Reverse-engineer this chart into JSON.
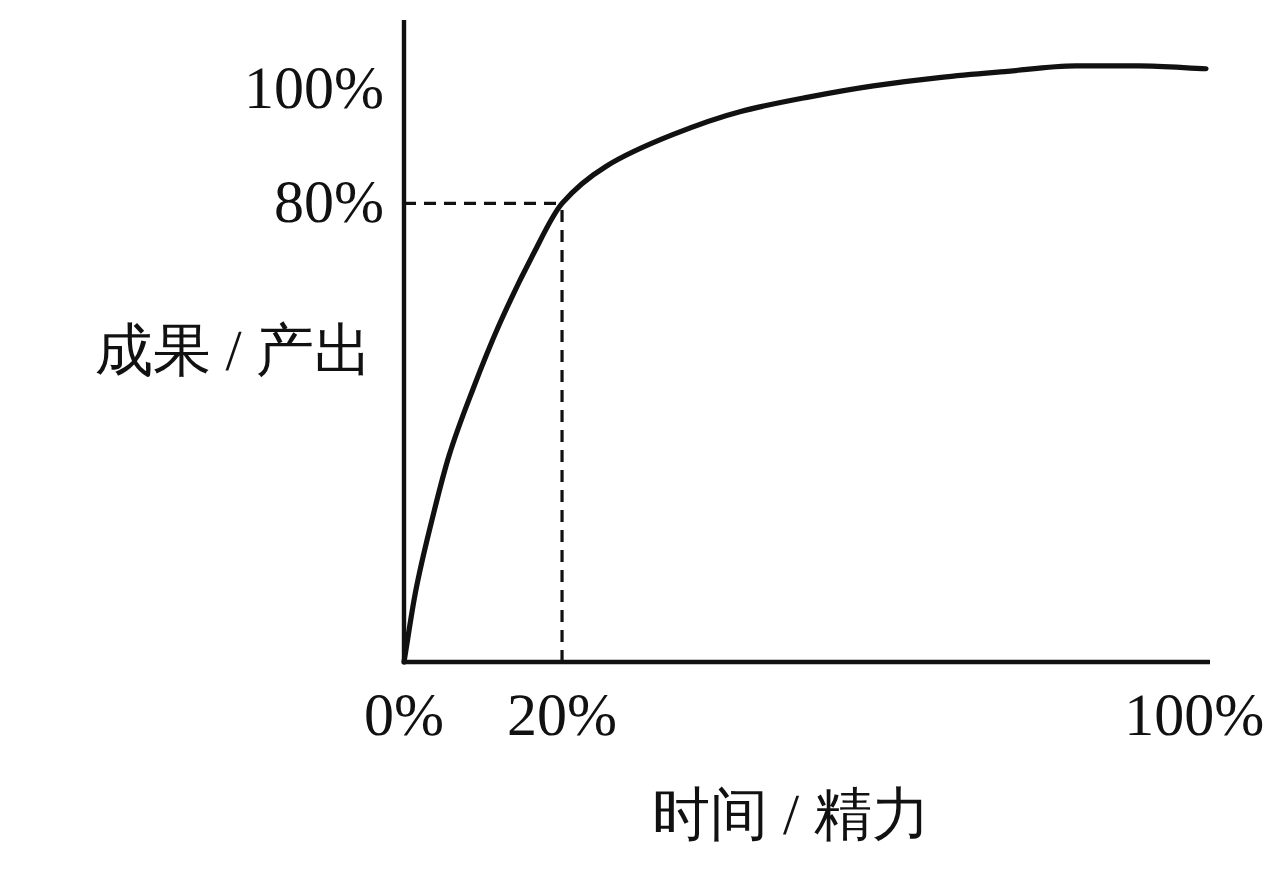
{
  "chart_data": {
    "type": "line",
    "xlabel": "时间 / 精力",
    "ylabel": "成果 / 产出",
    "x": [
      0,
      1.5,
      3.4,
      5.7,
      8.7,
      12.1,
      16.3,
      20,
      25.6,
      34,
      42.5,
      51,
      59.4,
      68,
      76,
      85,
      93,
      101.5
    ],
    "series": [
      {
        "color": "#111111",
        "values": [
          0,
          12.5,
          24,
          36,
          47.5,
          59,
          71,
          80,
          86.5,
          92,
          96,
          98.5,
          100.5,
          102,
          103,
          104,
          104,
          103.5
        ]
      }
    ],
    "xlim": [
      0,
      102
    ],
    "ylim": [
      0,
      112
    ],
    "xticks": [
      {
        "value": 0,
        "label": "0%"
      },
      {
        "value": 20,
        "label": "20%"
      },
      {
        "value": 100,
        "label": "100%"
      }
    ],
    "yticks": [
      {
        "value": 80,
        "label": "80%"
      },
      {
        "value": 100,
        "label": "100%"
      }
    ],
    "ref_lines": [
      {
        "axis": "x",
        "value": 20,
        "line_style": "dashed"
      },
      {
        "axis": "y",
        "value": 80,
        "line_style": "dashed"
      }
    ]
  }
}
